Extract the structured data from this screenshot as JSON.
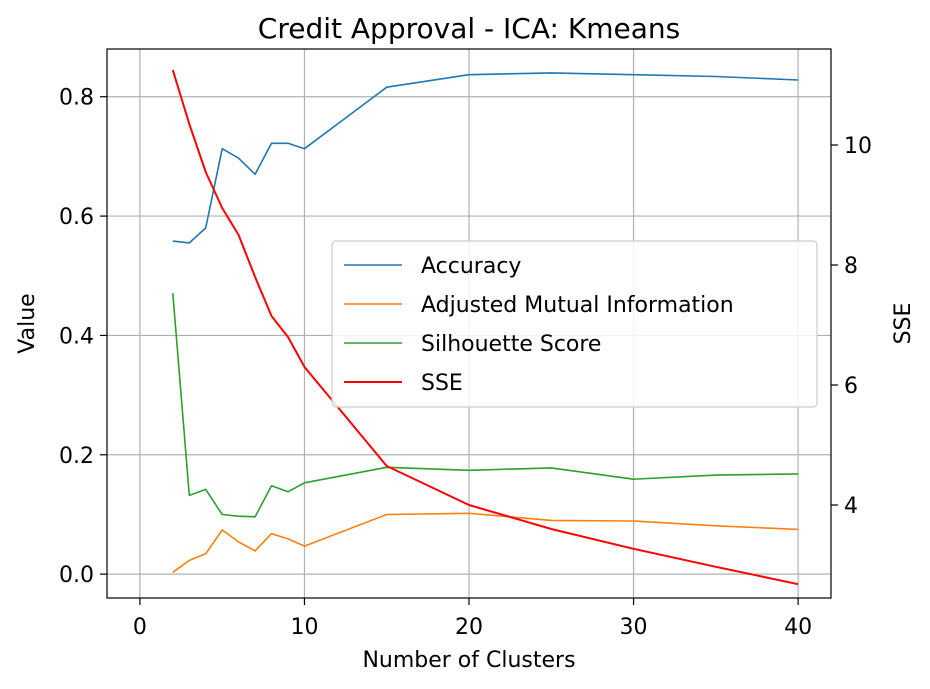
{
  "chart_data": {
    "type": "line",
    "title": "Credit Approval - ICA: Kmeans",
    "xlabel": "Number of Clusters",
    "ylabel": "Value",
    "y2label": "SSE",
    "xlim": [
      -2,
      42
    ],
    "ylim": [
      -0.04,
      0.88
    ],
    "y2lim": [
      2.45,
      11.6
    ],
    "xticks": [
      0,
      10,
      20,
      30,
      40
    ],
    "yticks": [
      0.0,
      0.2,
      0.4,
      0.6,
      0.8
    ],
    "y2ticks": [
      4,
      6,
      8,
      10
    ],
    "xtick_labels": [
      "0",
      "10",
      "20",
      "30",
      "40"
    ],
    "ytick_labels": [
      "0.0",
      "0.2",
      "0.4",
      "0.6",
      "0.8"
    ],
    "y2tick_labels": [
      "4",
      "6",
      "8",
      "10"
    ],
    "grid": true,
    "legend_position": "center-right",
    "x": [
      2,
      3,
      4,
      5,
      6,
      7,
      8,
      9,
      10,
      15,
      20,
      25,
      30,
      35,
      40
    ],
    "series": [
      {
        "name": "Accuracy",
        "axis": "left",
        "color": "#1f77b4",
        "values": [
          0.558,
          0.555,
          0.58,
          0.713,
          0.697,
          0.67,
          0.722,
          0.722,
          0.713,
          0.816,
          0.837,
          0.84,
          0.837,
          0.834,
          0.828
        ]
      },
      {
        "name": "Adjusted Mutual Information",
        "axis": "left",
        "color": "#ff7f0e",
        "values": [
          0.003,
          0.023,
          0.034,
          0.074,
          0.054,
          0.039,
          0.068,
          0.059,
          0.047,
          0.1,
          0.102,
          0.09,
          0.089,
          0.081,
          0.075
        ]
      },
      {
        "name": "Silhouette Score",
        "axis": "left",
        "color": "#2ca02c",
        "values": [
          0.471,
          0.132,
          0.142,
          0.1,
          0.097,
          0.096,
          0.148,
          0.138,
          0.153,
          0.179,
          0.174,
          0.178,
          0.159,
          0.166,
          0.168
        ]
      },
      {
        "name": "SSE",
        "axis": "right",
        "color": "#ff0000",
        "values": [
          11.25,
          10.35,
          9.55,
          8.95,
          8.5,
          7.8,
          7.15,
          6.8,
          6.3,
          4.65,
          4.0,
          3.6,
          3.27,
          2.97,
          2.68
        ]
      }
    ]
  }
}
